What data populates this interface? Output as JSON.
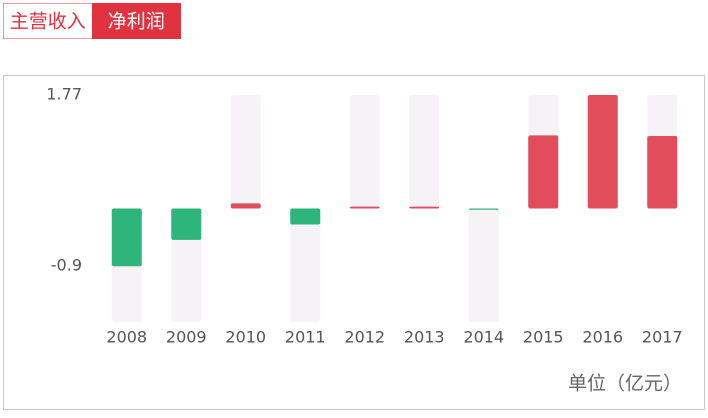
{
  "tabs": [
    "主营收入",
    "净利润"
  ],
  "active_tab": 1,
  "chart_data": {
    "type": "bar",
    "categories": [
      "2008",
      "2009",
      "2010",
      "2011",
      "2012",
      "2013",
      "2014",
      "2015",
      "2016",
      "2017"
    ],
    "values": [
      -0.9,
      -0.49,
      0.08,
      -0.25,
      0.03,
      0.03,
      -0.02,
      1.14,
      1.77,
      1.13
    ],
    "positive_color": "#e14d5b",
    "negative_color": "#2db57b",
    "ylim": [
      -1.77,
      1.77
    ],
    "yticks": [
      1.77,
      -0.9
    ],
    "unit_label": "单位（亿元）"
  }
}
